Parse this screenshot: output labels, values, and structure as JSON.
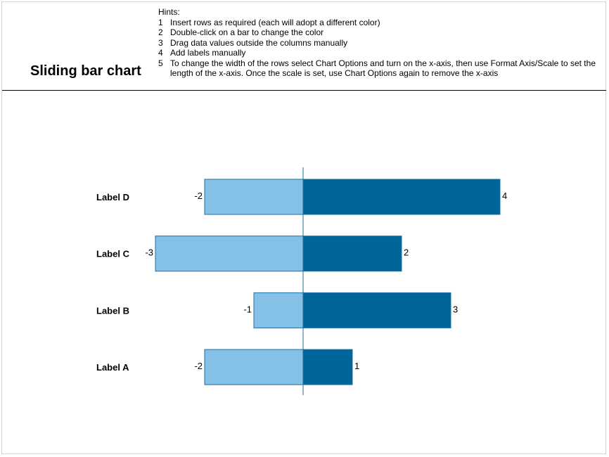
{
  "page": {
    "title": "Sliding bar chart",
    "hints_heading": "Hints:",
    "hints": [
      {
        "num": "1",
        "text": "Insert rows as required (each will adopt a different color)"
      },
      {
        "num": "2",
        "text": "Double-click on a bar to change the color"
      },
      {
        "num": "3",
        "text": "Drag data values outside the columns manually"
      },
      {
        "num": "4",
        "text": "Add labels manually"
      },
      {
        "num": "5",
        "text": "To change the width of the rows select Chart Options and turn on the x-axis, then use Format Axis/Scale to set the length of the x-axis. Once the scale is set, use Chart Options again to remove the x-axis"
      }
    ]
  },
  "colors": {
    "negative_bar": "#85C1E6",
    "positive_bar": "#006699",
    "bar_border": "#1F6FA0",
    "axis": "#1F6FA0"
  },
  "chart_data": {
    "type": "bar",
    "orientation": "horizontal",
    "stacked": "diverging",
    "categories": [
      "Label D",
      "Label C",
      "Label B",
      "Label A"
    ],
    "series": [
      {
        "values": [
          -2,
          -3,
          -1,
          -2
        ]
      },
      {
        "values": [
          4,
          2,
          3,
          1
        ]
      }
    ],
    "xlim": [
      -3,
      4
    ],
    "grid": false,
    "legend": "none",
    "title": "",
    "xlabel": "",
    "ylabel": ""
  }
}
